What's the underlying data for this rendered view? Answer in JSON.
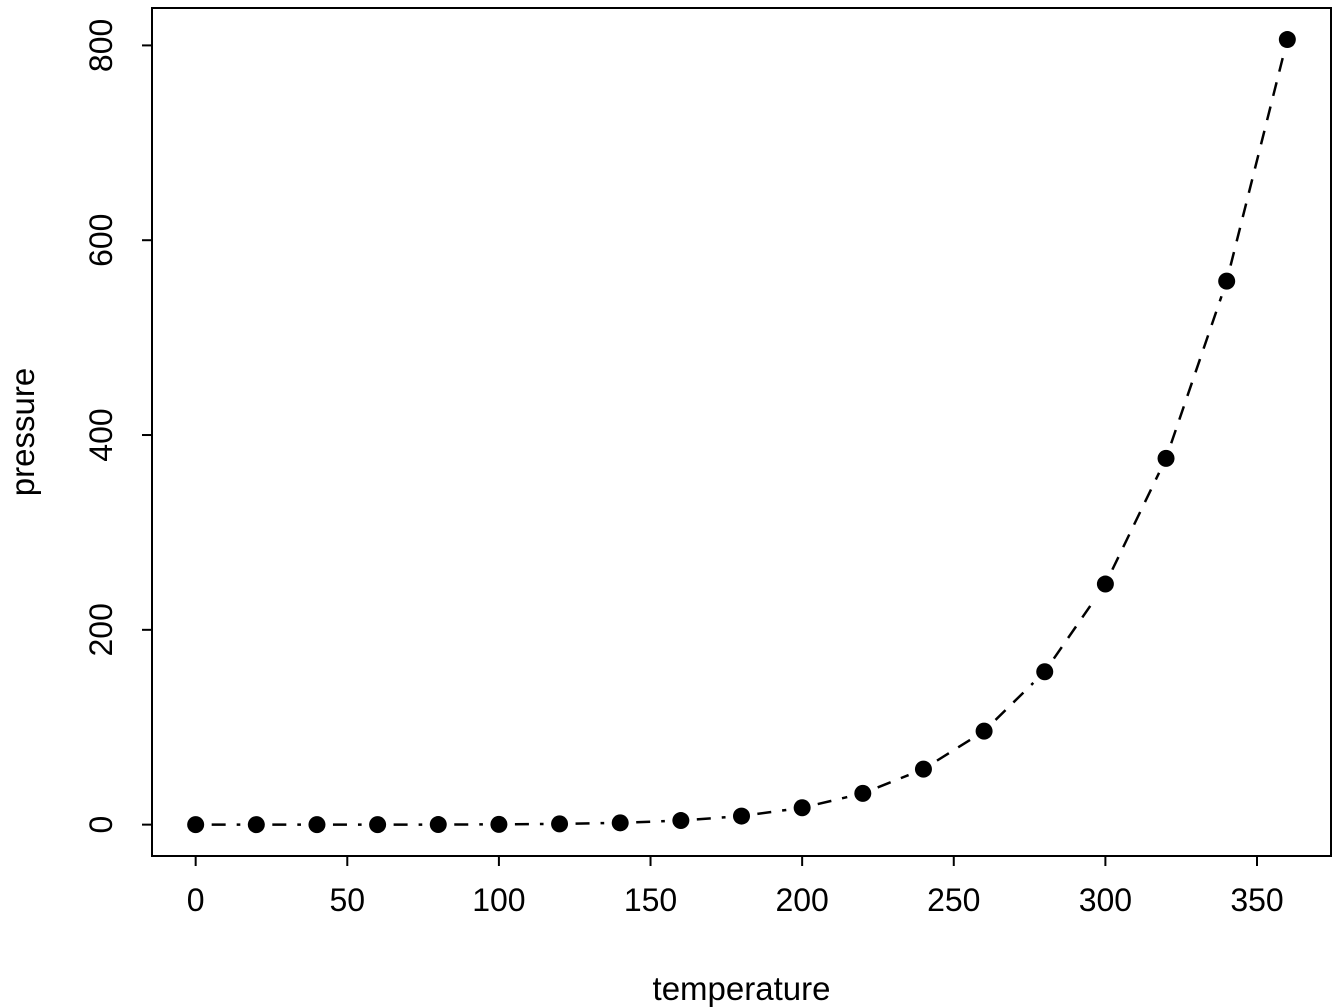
{
  "chart_data": {
    "type": "scatter",
    "title": "",
    "xlabel": "temperature",
    "ylabel": "pressure",
    "x": [
      0,
      20,
      40,
      60,
      80,
      100,
      120,
      140,
      160,
      180,
      200,
      220,
      240,
      260,
      280,
      300,
      320,
      340,
      360
    ],
    "y": [
      0.0002,
      0.0012,
      0.006,
      0.03,
      0.09,
      0.27,
      0.75,
      1.85,
      4.2,
      8.8,
      17.3,
      32.1,
      57.0,
      96.0,
      157.0,
      247.0,
      376.0,
      558.0,
      806.0
    ],
    "x_ticks": [
      0,
      50,
      100,
      150,
      200,
      250,
      300,
      350
    ],
    "y_ticks": [
      0,
      200,
      400,
      600,
      800
    ],
    "xlim": [
      -14.4,
      374.4
    ],
    "ylim": [
      -32.2,
      838.4
    ],
    "line_style": "dashed",
    "marker": "filled-circle",
    "series_color": "#000000",
    "background_color": "#ffffff",
    "grid": "off",
    "legend": "none",
    "box": "full-border"
  }
}
